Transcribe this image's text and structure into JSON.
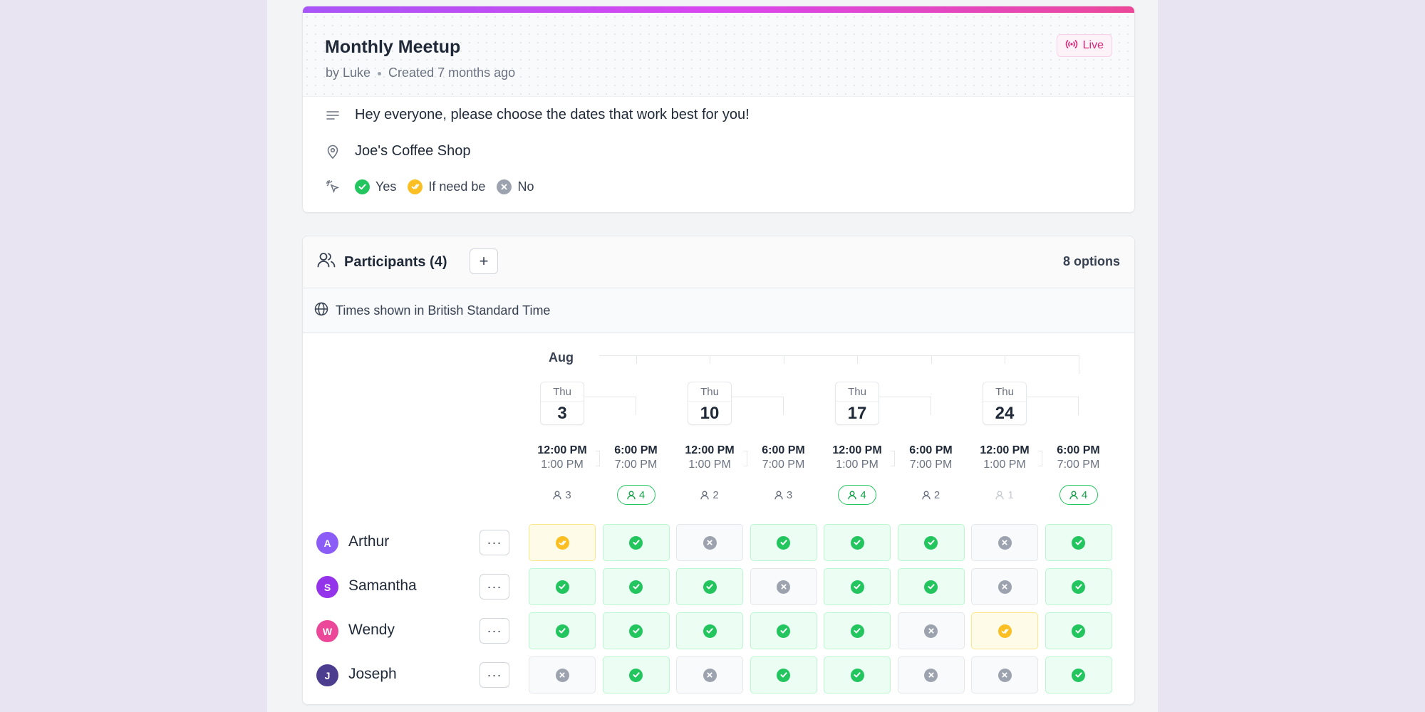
{
  "poll": {
    "title": "Monthly Meetup",
    "author": "by Luke",
    "created": "Created 7 months ago",
    "status_badge": "Live",
    "description": "Hey everyone, please choose the dates that work best for you!",
    "location": "Joe's Coffee Shop",
    "legend": {
      "yes": "Yes",
      "if_need_be": "If need be",
      "no": "No"
    }
  },
  "colors": {
    "accent_gradient": [
      "#a855f7",
      "#d946ef",
      "#ec4899"
    ],
    "yes": "#22c55e",
    "if_need_be": "#fbbf24",
    "no": "#9ca3af",
    "live": "#db2777"
  },
  "participants_panel": {
    "title": "Participants (4)",
    "add_label": "+",
    "options_count": "8 options",
    "timezone_note": "Times shown in British Standard Time",
    "month": "Aug",
    "dates": [
      {
        "dow": "Thu",
        "day": "3"
      },
      {
        "dow": "Thu",
        "day": "10"
      },
      {
        "dow": "Thu",
        "day": "17"
      },
      {
        "dow": "Thu",
        "day": "24"
      }
    ],
    "options": [
      {
        "start": "12:00 PM",
        "end": "1:00 PM",
        "count": "3"
      },
      {
        "start": "6:00 PM",
        "end": "7:00 PM",
        "count": "4"
      },
      {
        "start": "12:00 PM",
        "end": "1:00 PM",
        "count": "2"
      },
      {
        "start": "6:00 PM",
        "end": "7:00 PM",
        "count": "3"
      },
      {
        "start": "12:00 PM",
        "end": "1:00 PM",
        "count": "4"
      },
      {
        "start": "6:00 PM",
        "end": "7:00 PM",
        "count": "2"
      },
      {
        "start": "12:00 PM",
        "end": "1:00 PM",
        "count": "1"
      },
      {
        "start": "6:00 PM",
        "end": "7:00 PM",
        "count": "4"
      }
    ],
    "more_label": "···",
    "participants": [
      {
        "initial": "A",
        "name": "Arthur",
        "color": "#8b5cf6",
        "votes": [
          "ifneedbe",
          "yes",
          "no",
          "yes",
          "yes",
          "yes",
          "no",
          "yes"
        ]
      },
      {
        "initial": "S",
        "name": "Samantha",
        "color": "#9333ea",
        "votes": [
          "yes",
          "yes",
          "yes",
          "no",
          "yes",
          "yes",
          "no",
          "yes"
        ]
      },
      {
        "initial": "W",
        "name": "Wendy",
        "color": "#ec4899",
        "votes": [
          "yes",
          "yes",
          "yes",
          "yes",
          "yes",
          "no",
          "ifneedbe",
          "yes"
        ]
      },
      {
        "initial": "J",
        "name": "Joseph",
        "color": "#4c3d8f",
        "votes": [
          "no",
          "yes",
          "no",
          "yes",
          "yes",
          "no",
          "no",
          "yes"
        ]
      }
    ]
  }
}
